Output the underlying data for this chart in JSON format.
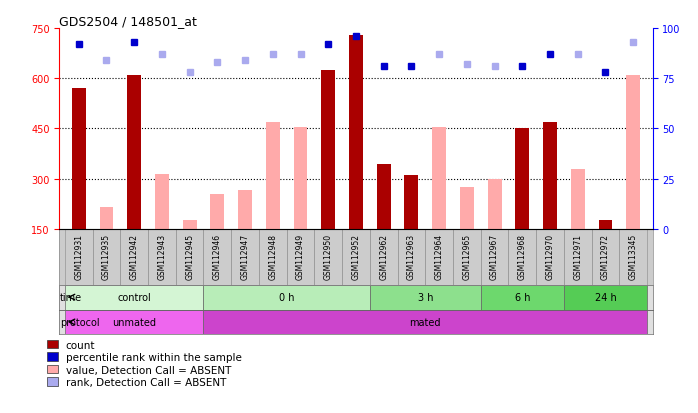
{
  "title": "GDS2504 / 148501_at",
  "samples": [
    "GSM112931",
    "GSM112935",
    "GSM112942",
    "GSM112943",
    "GSM112945",
    "GSM112946",
    "GSM112947",
    "GSM112948",
    "GSM112949",
    "GSM112950",
    "GSM112952",
    "GSM112962",
    "GSM112963",
    "GSM112964",
    "GSM112965",
    "GSM112967",
    "GSM112968",
    "GSM112970",
    "GSM112971",
    "GSM112972",
    "GSM113345"
  ],
  "count_values": [
    570,
    null,
    610,
    null,
    null,
    null,
    null,
    null,
    null,
    625,
    730,
    345,
    310,
    null,
    null,
    null,
    450,
    470,
    null,
    175,
    null
  ],
  "count_absent_values": [
    null,
    215,
    null,
    315,
    175,
    255,
    265,
    470,
    455,
    null,
    null,
    null,
    null,
    455,
    275,
    300,
    null,
    null,
    330,
    null,
    610
  ],
  "rank_present_pct": [
    92,
    null,
    93,
    null,
    null,
    null,
    null,
    null,
    null,
    92,
    96,
    81,
    81,
    null,
    null,
    null,
    81,
    87,
    null,
    78,
    null
  ],
  "rank_absent_pct": [
    null,
    84,
    null,
    87,
    78,
    83,
    84,
    87,
    87,
    null,
    null,
    null,
    null,
    87,
    82,
    81,
    null,
    null,
    87,
    null,
    93
  ],
  "ylim_left": [
    150,
    750
  ],
  "ylim_right": [
    0,
    100
  ],
  "yticks_left": [
    150,
    300,
    450,
    600,
    750
  ],
  "yticks_right": [
    0,
    25,
    50,
    75,
    100
  ],
  "grid_values": [
    300,
    450,
    600
  ],
  "time_groups": [
    {
      "label": "control",
      "start": 0,
      "end": 4,
      "color": "#d4f5d4"
    },
    {
      "label": "0 h",
      "start": 5,
      "end": 10,
      "color": "#b8edb8"
    },
    {
      "label": "3 h",
      "start": 11,
      "end": 14,
      "color": "#8de08d"
    },
    {
      "label": "6 h",
      "start": 15,
      "end": 17,
      "color": "#6dd86d"
    },
    {
      "label": "24 h",
      "start": 18,
      "end": 20,
      "color": "#55cc55"
    }
  ],
  "protocol_groups": [
    {
      "label": "unmated",
      "start": 0,
      "end": 4,
      "color": "#ee66ee"
    },
    {
      "label": "mated",
      "start": 5,
      "end": 20,
      "color": "#cc44cc"
    }
  ],
  "bar_width": 0.5,
  "count_color": "#aa0000",
  "count_absent_color": "#ffaaaa",
  "rank_present_color": "#0000cc",
  "rank_absent_color": "#aaaaee",
  "bg_color": "#ffffff",
  "legend_items": [
    {
      "color": "#aa0000",
      "label": "count"
    },
    {
      "color": "#0000cc",
      "label": "percentile rank within the sample"
    },
    {
      "color": "#ffaaaa",
      "label": "value, Detection Call = ABSENT"
    },
    {
      "color": "#aaaaee",
      "label": "rank, Detection Call = ABSENT"
    }
  ]
}
